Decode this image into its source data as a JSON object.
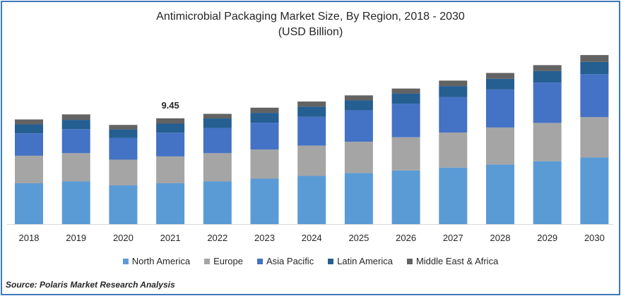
{
  "chart_data": {
    "type": "bar",
    "stacked": true,
    "title": "Antimicrobial Packaging Market Size, By Region, 2018 - 2030",
    "subtitle": "(USD Billion)",
    "categories": [
      "2018",
      "2019",
      "2020",
      "2021",
      "2022",
      "2023",
      "2024",
      "2025",
      "2026",
      "2027",
      "2028",
      "2029",
      "2030"
    ],
    "series": [
      {
        "name": "North America",
        "color": "#5b9bd5",
        "values": [
          3.65,
          3.81,
          3.46,
          3.65,
          3.81,
          4.06,
          4.31,
          4.56,
          4.79,
          5.05,
          5.33,
          5.62,
          5.95
        ]
      },
      {
        "name": "Europe",
        "color": "#a5a5a5",
        "values": [
          2.46,
          2.53,
          2.3,
          2.4,
          2.53,
          2.6,
          2.7,
          2.8,
          2.97,
          3.13,
          3.3,
          3.42,
          3.61
        ]
      },
      {
        "name": "Asia Pacific",
        "color": "#4472c4",
        "values": [
          2.0,
          2.14,
          1.95,
          2.12,
          2.25,
          2.4,
          2.58,
          2.8,
          3.0,
          3.18,
          3.4,
          3.6,
          3.83
        ]
      },
      {
        "name": "Latin America",
        "color": "#255e91",
        "values": [
          0.8,
          0.83,
          0.75,
          0.8,
          0.85,
          0.88,
          0.9,
          0.89,
          0.91,
          0.97,
          0.95,
          1.04,
          1.1
        ]
      },
      {
        "name": "Middle East & Africa",
        "color": "#636363",
        "values": [
          0.44,
          0.49,
          0.4,
          0.48,
          0.41,
          0.46,
          0.46,
          0.45,
          0.44,
          0.49,
          0.52,
          0.52,
          0.61
        ]
      }
    ],
    "annotations": [
      {
        "category": "2021",
        "text": "9.45"
      }
    ],
    "ylim": [
      0,
      17.5
    ],
    "grid": false,
    "legend_position": "bottom"
  },
  "source": "Source: Polaris Market Research Analysis"
}
